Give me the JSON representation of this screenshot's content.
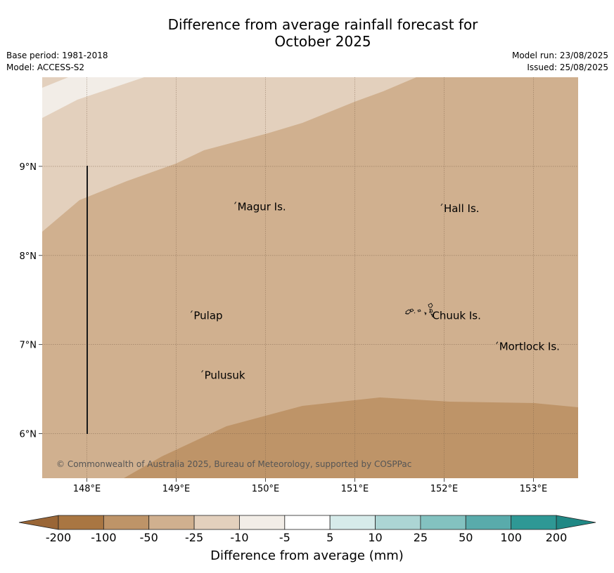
{
  "title_line1": "Difference from average rainfall forecast for",
  "title_line2": "October 2025",
  "base_period": "Base period: 1981-2018",
  "model": "Model: ACCESS-S2",
  "model_run": "Model run: 23/08/2025",
  "issued": "Issued: 25/08/2025",
  "copyright": "© Commonwealth of Australia 2025, Bureau of Meteorology, supported by COSPPac",
  "map": {
    "lon_range": [
      147.5,
      153.5
    ],
    "lat_range": [
      5.5,
      10.0
    ],
    "lon_ticks": [
      {
        "value": 148,
        "label": "148°E"
      },
      {
        "value": 149,
        "label": "149°E"
      },
      {
        "value": 150,
        "label": "150°E"
      },
      {
        "value": 151,
        "label": "151°E"
      },
      {
        "value": 152,
        "label": "152°E"
      },
      {
        "value": 153,
        "label": "153°E"
      }
    ],
    "lat_ticks": [
      {
        "value": 9,
        "label": "9°N"
      },
      {
        "value": 8,
        "label": "8°N"
      },
      {
        "value": 7,
        "label": "7°N"
      },
      {
        "value": 6,
        "label": "6°N"
      }
    ],
    "places": [
      {
        "name": "Magur Is.",
        "lon": 149.67,
        "lat": 8.57
      },
      {
        "name": "Hall Is.",
        "lon": 151.98,
        "lat": 8.55
      },
      {
        "name": "Pulap",
        "lon": 149.18,
        "lat": 7.35
      },
      {
        "name": "Chuuk Is.",
        "lon": 151.85,
        "lat": 7.35
      },
      {
        "name": "Mortlock Is.",
        "lon": 152.6,
        "lat": 7.0
      },
      {
        "name": "Pulusuk",
        "lon": 149.3,
        "lat": 6.68
      }
    ]
  },
  "colorbar": {
    "label": "Difference from average (mm)",
    "ticks": [
      "-200",
      "-100",
      "-50",
      "-25",
      "-10",
      "-5",
      "5",
      "10",
      "25",
      "50",
      "100",
      "200"
    ],
    "colors": [
      "#a97642",
      "#be9468",
      "#d0b08f",
      "#e3d0bd",
      "#f2ede7",
      "#ffffff",
      "#d6ebea",
      "#acd5d4",
      "#83c2c0",
      "#59abab",
      "#2e9895"
    ],
    "under_color": "#9a6636",
    "over_color": "#208885"
  }
}
